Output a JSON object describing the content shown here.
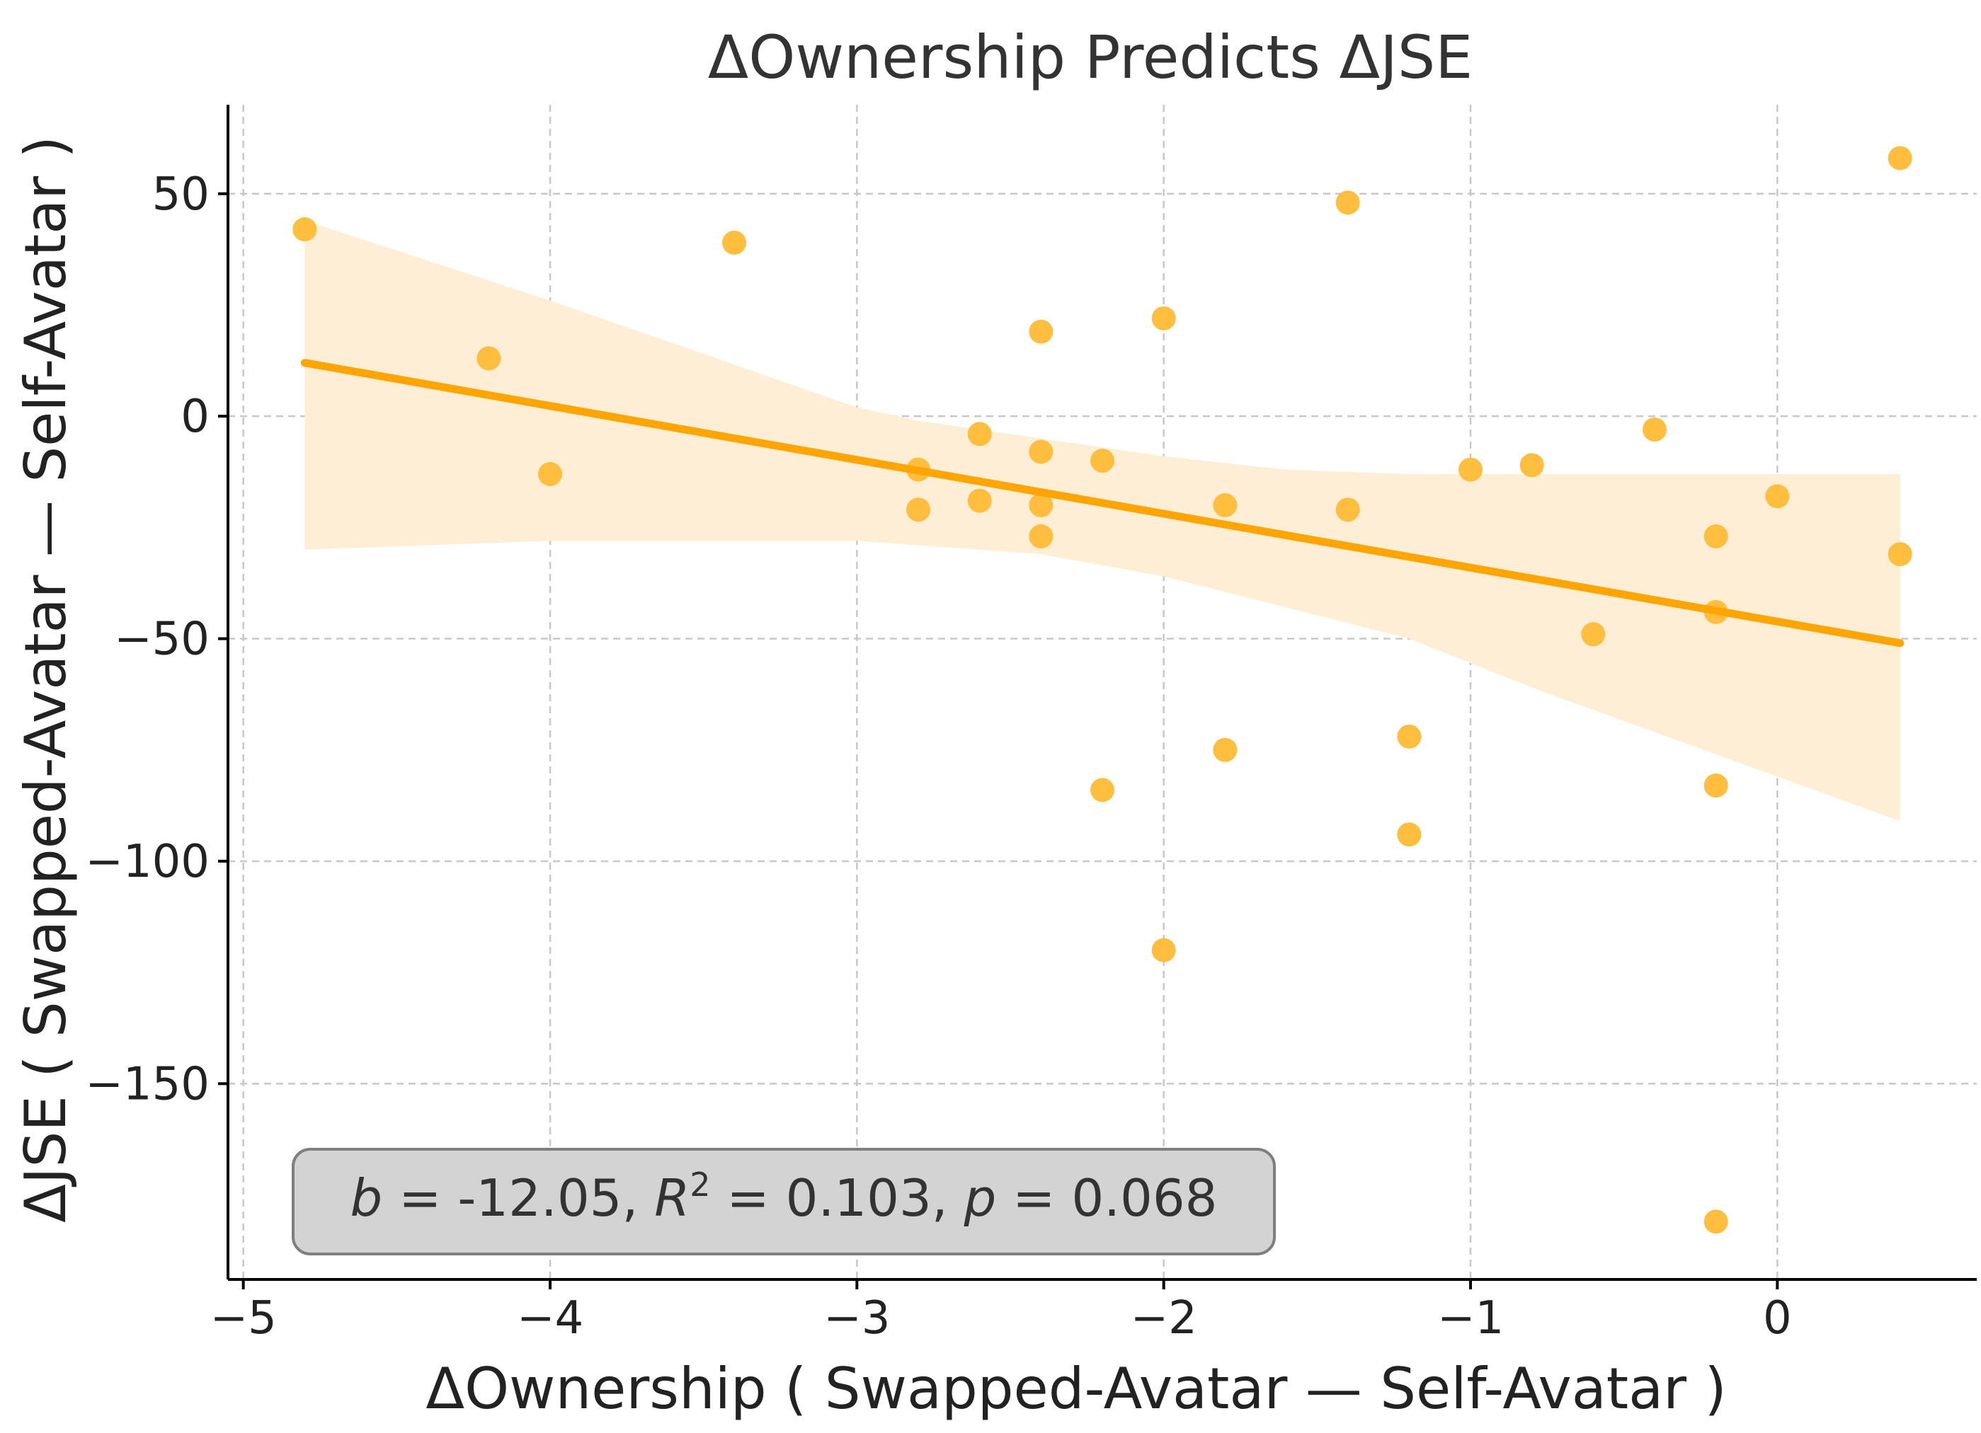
{
  "chart_data": {
    "type": "scatter",
    "title": "ΔOwnership Predicts ΔJSE",
    "xlabel": "ΔOwnership ( Swapped-Avatar — Self-Avatar )",
    "ylabel": "ΔJSE ( Swapped-Avatar — Self-Avatar )",
    "xlim": [
      -5.05,
      0.65
    ],
    "ylim": [
      -194,
      70
    ],
    "x_ticks": [
      -5,
      -4,
      -3,
      -2,
      -1,
      0
    ],
    "x_tick_labels": [
      "−5",
      "−4",
      "−3",
      "−2",
      "−1",
      "0"
    ],
    "y_ticks": [
      50,
      0,
      -50,
      -100,
      -150
    ],
    "y_tick_labels": [
      "50",
      "0",
      "−50",
      "−100",
      "−150"
    ],
    "grid": true,
    "points": [
      {
        "x": -4.8,
        "y": 42
      },
      {
        "x": -4.2,
        "y": 13
      },
      {
        "x": -4.0,
        "y": -13
      },
      {
        "x": -3.4,
        "y": 39
      },
      {
        "x": -2.8,
        "y": -12
      },
      {
        "x": -2.8,
        "y": -21
      },
      {
        "x": -2.6,
        "y": -4
      },
      {
        "x": -2.6,
        "y": -19
      },
      {
        "x": -2.4,
        "y": 19
      },
      {
        "x": -2.4,
        "y": -8
      },
      {
        "x": -2.4,
        "y": -20
      },
      {
        "x": -2.4,
        "y": -27
      },
      {
        "x": -2.2,
        "y": -10
      },
      {
        "x": -2.2,
        "y": -84
      },
      {
        "x": -2.0,
        "y": 22
      },
      {
        "x": -2.0,
        "y": -120
      },
      {
        "x": -1.8,
        "y": -20
      },
      {
        "x": -1.8,
        "y": -75
      },
      {
        "x": -1.4,
        "y": 48
      },
      {
        "x": -1.4,
        "y": -21
      },
      {
        "x": -1.2,
        "y": -72
      },
      {
        "x": -1.2,
        "y": -94
      },
      {
        "x": -1.0,
        "y": -12
      },
      {
        "x": -0.8,
        "y": -11
      },
      {
        "x": -0.6,
        "y": -49
      },
      {
        "x": -0.4,
        "y": -3
      },
      {
        "x": -0.2,
        "y": -27
      },
      {
        "x": -0.2,
        "y": -44
      },
      {
        "x": -0.2,
        "y": -83
      },
      {
        "x": -0.2,
        "y": -181
      },
      {
        "x": 0.0,
        "y": -18
      },
      {
        "x": 0.4,
        "y": 58
      },
      {
        "x": 0.4,
        "y": -31
      }
    ],
    "regression": {
      "x_start": -4.8,
      "y_start": 12,
      "x_end": 0.4,
      "y_end": -51
    },
    "confidence_band": {
      "x": [
        -4.8,
        -4.0,
        -3.0,
        -2.8,
        -2.4,
        -2.0,
        -1.6,
        -1.2,
        -0.8,
        -0.4,
        0.0,
        0.4
      ],
      "upper": [
        44,
        26,
        2,
        -1,
        -5,
        -9,
        -12,
        -13,
        -13,
        -13,
        -13,
        -13
      ],
      "lower": [
        -30,
        -28,
        -28,
        -29,
        -31,
        -36,
        -43,
        -50,
        -61,
        -71,
        -81,
        -91
      ]
    },
    "annotation": {
      "b_label": "b",
      "b_value": "-12.05",
      "r_label": "R",
      "r_power": "2",
      "r_value": "0.103",
      "p_label": "p",
      "p_value": "0.068"
    },
    "colors": {
      "points": "#FFBE3D",
      "line": "#FFA500",
      "band": "#FFEED6",
      "annotation_box": "#D3D3D3",
      "annotation_border": "#7F7F7F"
    }
  }
}
